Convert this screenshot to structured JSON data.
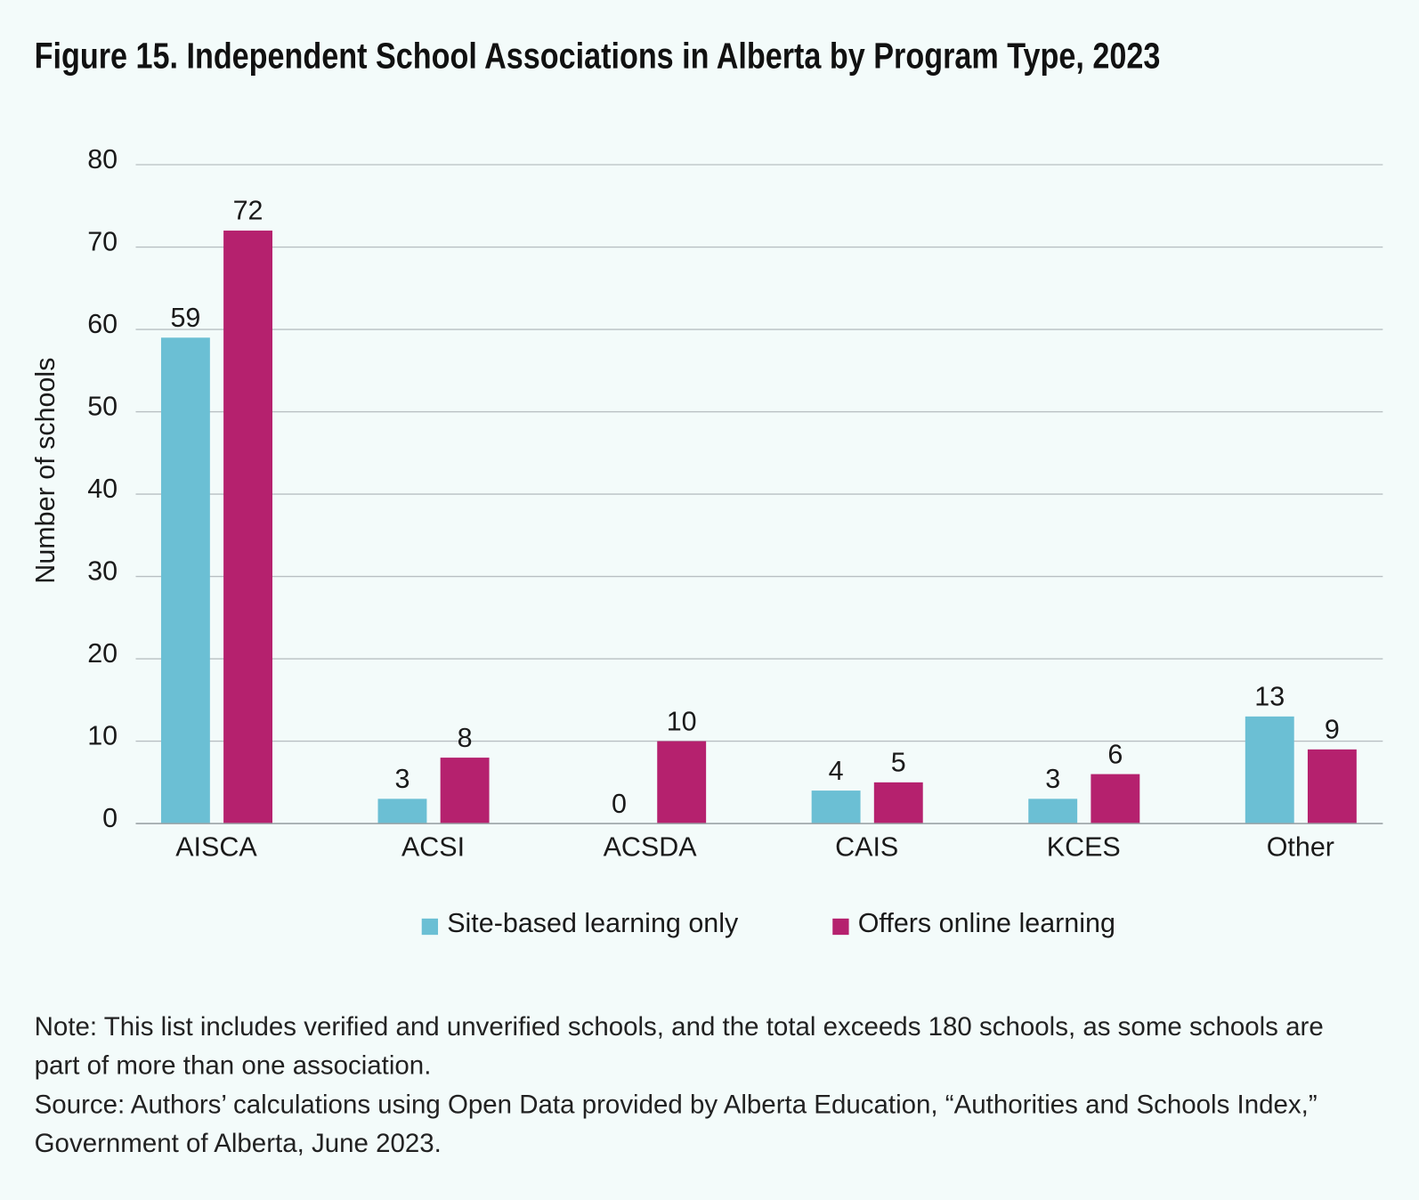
{
  "chart_data": {
    "type": "bar",
    "title": "Figure 15. Independent School Associations in Alberta by Program Type, 2023",
    "y_label": "Number of schools",
    "categories": [
      "AISCA",
      "ACSI",
      "ACSDA",
      "CAIS",
      "KCES",
      "Other"
    ],
    "series": [
      {
        "name": "Site-based learning only",
        "color": "#6bbfd4",
        "values": [
          59,
          3,
          0,
          4,
          3,
          13
        ]
      },
      {
        "name": "Offers online learning",
        "color": "#b5216e",
        "values": [
          72,
          8,
          10,
          5,
          6,
          9
        ]
      }
    ],
    "ylim": [
      0,
      80
    ],
    "yticks": [
      0,
      10,
      20,
      30,
      40,
      50,
      60,
      70,
      80
    ],
    "grid": true,
    "legend": "bottom",
    "note": "Note: This list includes verified and unverified schools, and the total exceeds 180 schools, as some schools are part of more than one association.",
    "source": "Source: Authors’ calculations using Open Data provided by Alberta Education, “Authorities and Schools Index,” Government of Alberta, June 2023."
  }
}
